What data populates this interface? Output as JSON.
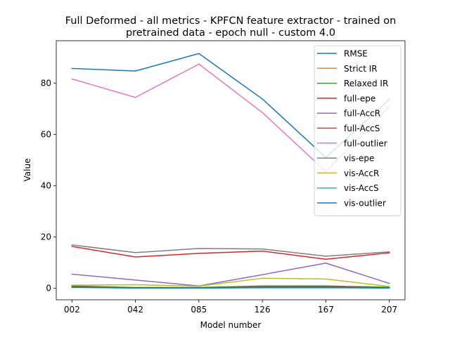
{
  "chart_data": {
    "type": "line",
    "title_line1": "Full Deformed - all metrics - KPFCN feature extractor -  trained on",
    "title_line2": "pretrained data -  epoch null - custom 4.0",
    "xlabel": "Model number",
    "ylabel": "Value",
    "categories": [
      "002",
      "042",
      "085",
      "126",
      "167",
      "207"
    ],
    "ylim": [
      -4.5,
      96.5
    ],
    "yticks": [
      0,
      20,
      40,
      60,
      80
    ],
    "legend_position": "top-right",
    "series": [
      {
        "name": "RMSE",
        "color": "#1f77b4",
        "values": [
          85.7,
          84.7,
          91.5,
          73.8,
          51.0,
          73.6
        ]
      },
      {
        "name": "Strict IR",
        "color": "#ff7f0e",
        "values": [
          0.5,
          0.3,
          0.2,
          0.4,
          0.5,
          0.2
        ]
      },
      {
        "name": "Relaxed IR",
        "color": "#2ca02c",
        "values": [
          0.9,
          0.3,
          0.3,
          0.9,
          0.9,
          0.4
        ]
      },
      {
        "name": "full-epe",
        "color": "#d62728",
        "values": [
          16.3,
          12.2,
          13.6,
          14.5,
          11.3,
          13.8
        ]
      },
      {
        "name": "full-AccR",
        "color": "#9467bd",
        "values": [
          5.5,
          3.2,
          0.9,
          5.3,
          9.8,
          1.9
        ]
      },
      {
        "name": "full-AccS",
        "color": "#8c564b",
        "values": [
          0.6,
          0.2,
          0.2,
          0.5,
          0.6,
          0.2
        ]
      },
      {
        "name": "full-outlier",
        "color": "#e377c2",
        "values": [
          81.6,
          74.4,
          87.4,
          68.5,
          45.5,
          70.9
        ]
      },
      {
        "name": "vis-epe",
        "color": "#7f7f7f",
        "values": [
          16.9,
          13.9,
          15.5,
          15.3,
          12.5,
          14.2
        ]
      },
      {
        "name": "vis-AccR",
        "color": "#bcbd22",
        "values": [
          1.2,
          1.4,
          0.8,
          3.9,
          3.6,
          0.7
        ]
      },
      {
        "name": "vis-AccS",
        "color": "#17becf",
        "values": [
          0.3,
          0.1,
          0.1,
          0.2,
          0.2,
          0.1
        ]
      },
      {
        "name": "vis-outlier",
        "color": "#1f77b4",
        "values": [
          0.4,
          0.1,
          0.1,
          0.3,
          0.3,
          0.1
        ]
      }
    ]
  }
}
